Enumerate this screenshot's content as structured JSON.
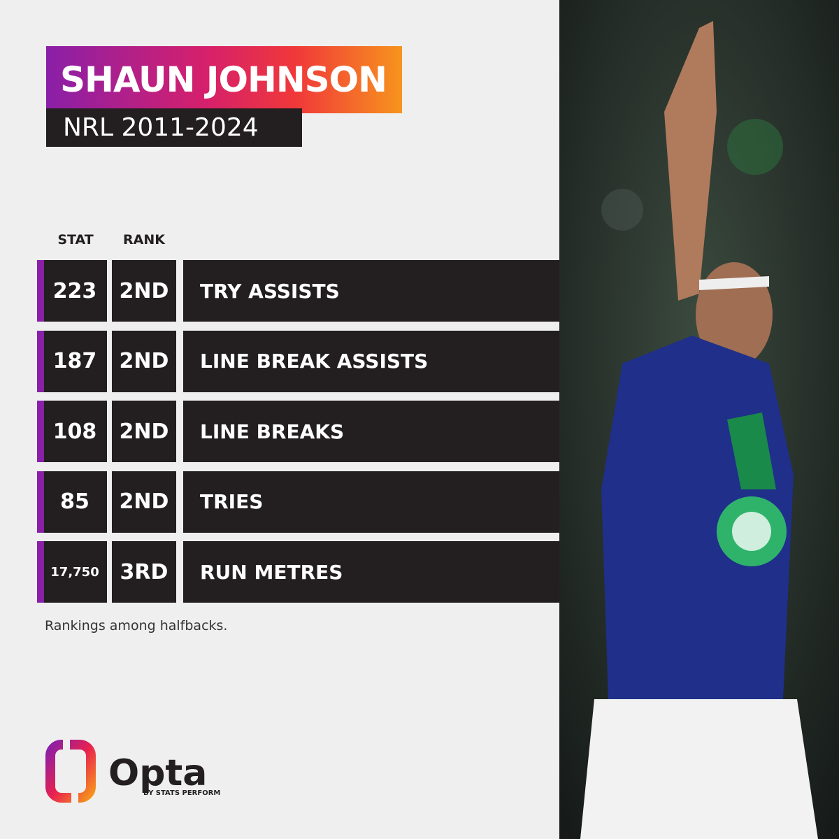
{
  "header": {
    "title": "SHAUN JOHNSON",
    "subtitle": "NRL 2011-2024"
  },
  "table": {
    "columns": [
      "STAT",
      "RANK"
    ],
    "rows": [
      [
        "223",
        "2ND",
        "TRY ASSISTS"
      ],
      [
        "187",
        "2ND",
        "LINE BREAK ASSISTS"
      ],
      [
        "108",
        "2ND",
        "LINE BREAKS"
      ],
      [
        "85",
        "2ND",
        "TRIES"
      ],
      [
        "17,750",
        "3RD",
        "RUN METRES"
      ]
    ]
  },
  "footnote": "Rankings among halfbacks.",
  "logo": {
    "name": "Opta",
    "tagline": "BY STATS PERFORM"
  }
}
